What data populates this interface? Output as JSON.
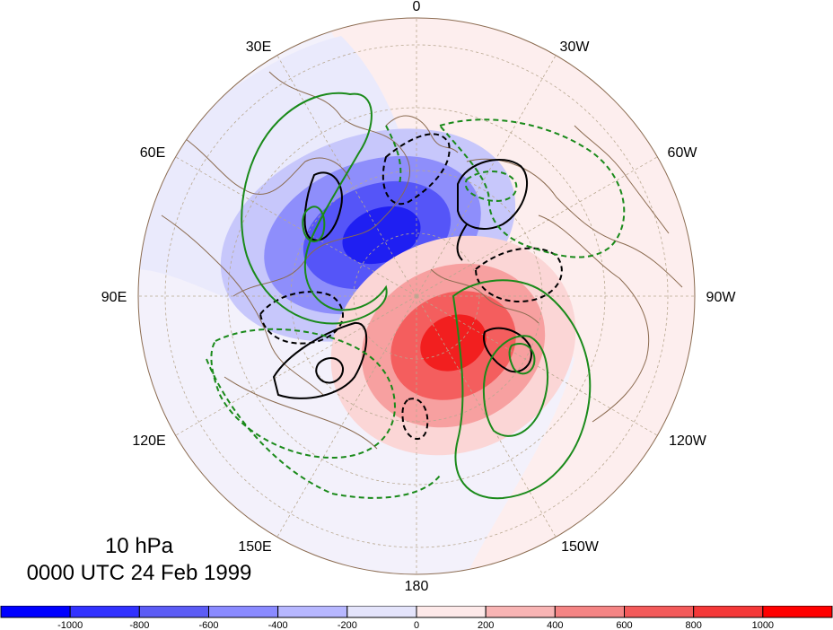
{
  "map": {
    "projection": "north polar stereographic",
    "longitude_labels": [
      "0",
      "30W",
      "60W",
      "90W",
      "120W",
      "150W",
      "180",
      "150E",
      "120E",
      "90E",
      "60E",
      "30E"
    ],
    "fill_colors": {
      "neg_strong": "#1a1aff",
      "neg_mid": "#4d4dff",
      "neg_light": "#9a9aff",
      "neg_faint": "#e6e6fa",
      "pos_faint": "#fdeeee",
      "pos_light": "#f8b6b6",
      "pos_mid": "#f45a5a",
      "pos_strong": "#ff1a1a"
    },
    "contour_colors": {
      "solid_black": "#000000",
      "green": "#1a8a1a"
    },
    "coastline_color": "#8b6b50"
  },
  "title": {
    "level": "10 hPa",
    "datetime": "0000 UTC 24 Feb 1999"
  },
  "colorbar": {
    "colors": [
      "#0000ff",
      "#3232ff",
      "#5c5cf5",
      "#8a8aff",
      "#b7b7ff",
      "#e4e4fb",
      "#fde9e9",
      "#f8b4b4",
      "#f48484",
      "#f35a5a",
      "#f43838",
      "#ff0000"
    ],
    "tick_labels": [
      "-1000",
      "-800",
      "-600",
      "-400",
      "-200",
      "0",
      "200",
      "400",
      "600",
      "800",
      "1000"
    ]
  }
}
